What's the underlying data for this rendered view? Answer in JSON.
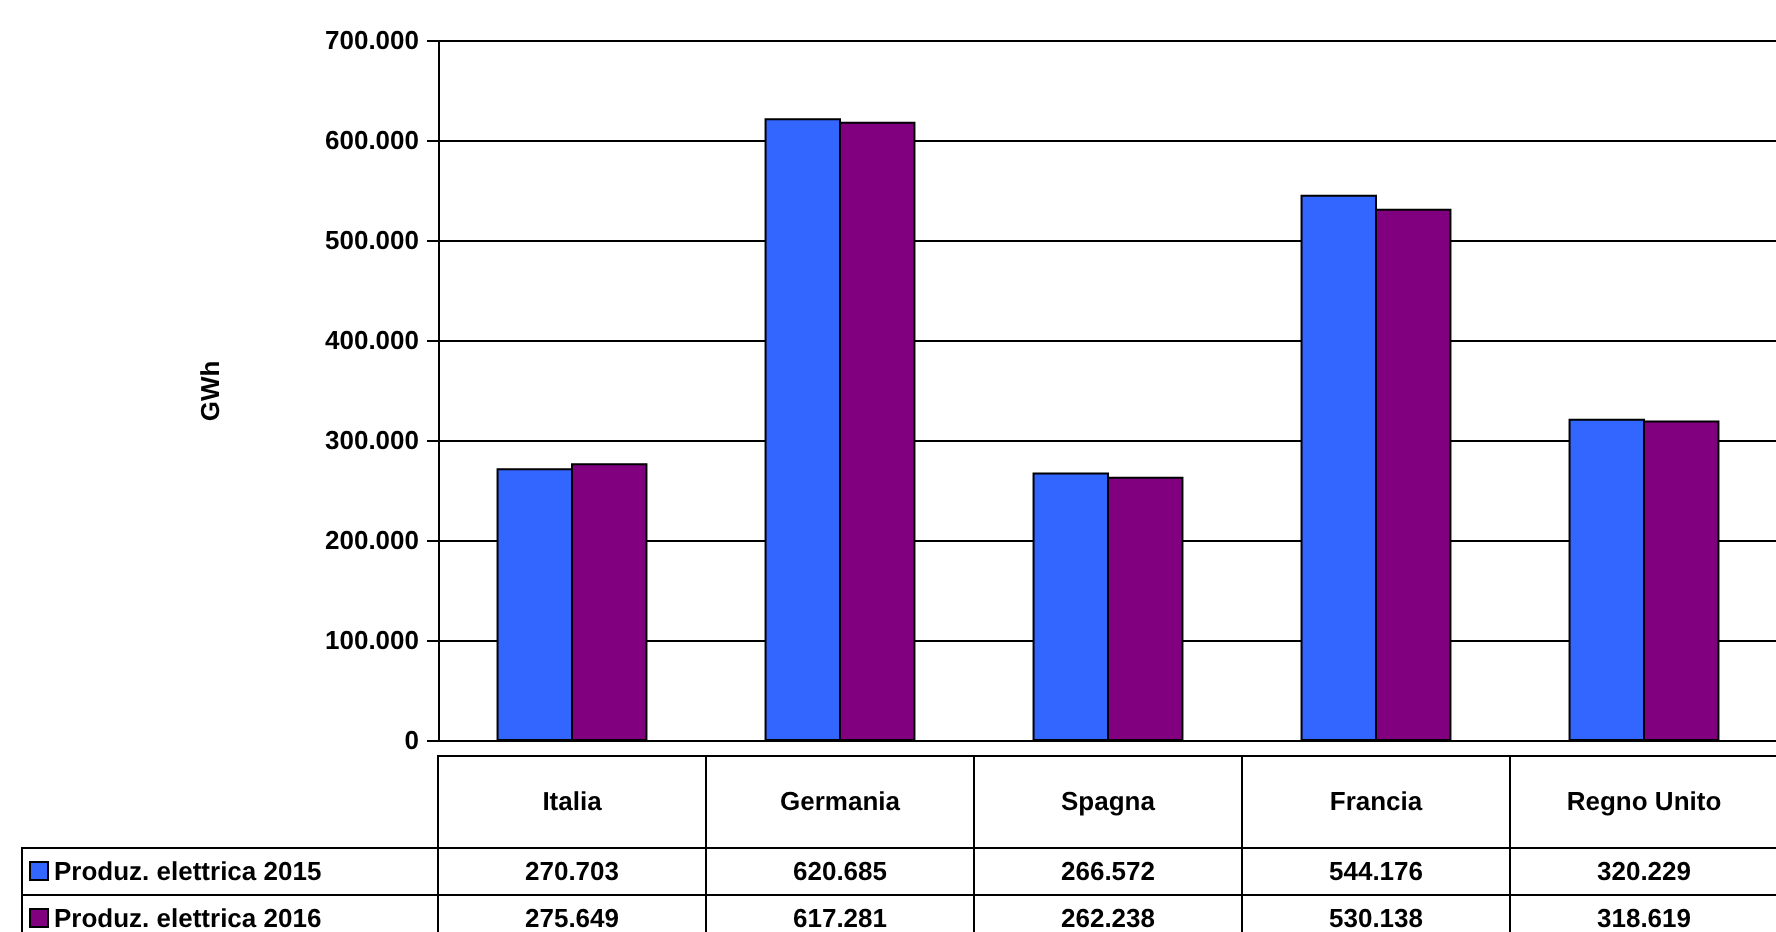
{
  "chart_data": {
    "type": "bar",
    "ylabel": "GWh",
    "categories": [
      "Italia",
      "Germania",
      "Spagna",
      "Francia",
      "Regno Unito"
    ],
    "series": [
      {
        "name": "Produz. elettrica 2015",
        "color": "#3366ff",
        "values": [
          270703,
          620685,
          266572,
          544176,
          320229
        ],
        "value_labels": [
          "270.703",
          "620.685",
          "266.572",
          "544.176",
          "320.229"
        ]
      },
      {
        "name": "Produz. elettrica 2016",
        "color": "#800080",
        "values": [
          275649,
          617281,
          262238,
          530138,
          318619
        ],
        "value_labels": [
          "275.649",
          "617.281",
          "262.238",
          "530.138",
          "318.619"
        ]
      }
    ],
    "ylim": [
      0,
      700000
    ],
    "yticks": [
      0,
      {
        "value": 100000,
        "label": "100.000"
      },
      {
        "value": 200000,
        "label": "200.000"
      },
      {
        "value": 300000,
        "label": "300.000"
      },
      {
        "value": 400000,
        "label": "400.000"
      },
      {
        "value": 500000,
        "label": "500.000"
      },
      {
        "value": 600000,
        "label": "600.000"
      },
      {
        "value": 700000,
        "label": "700.000"
      }
    ],
    "grid": "y",
    "legend": "bottom left"
  }
}
